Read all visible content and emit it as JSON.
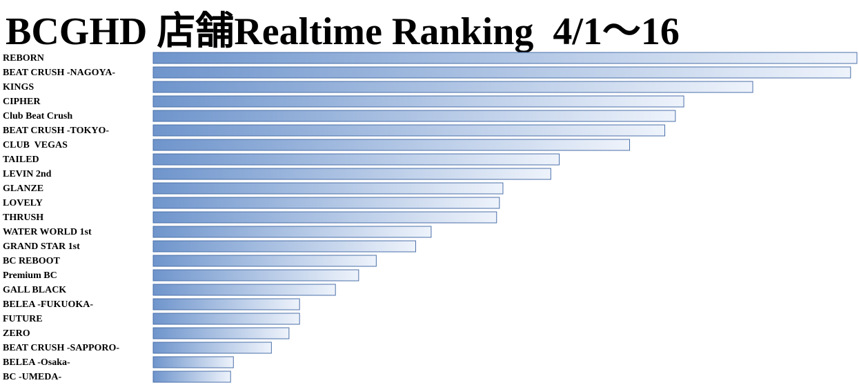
{
  "chart_data": {
    "type": "bar",
    "orientation": "horizontal",
    "title": "BCGHD 店舗Realtime Ranking  4/1～16",
    "categories": [
      "REBORN",
      "BEAT CRUSH -NAGOYA-",
      "KINGS",
      "CIPHER",
      "Club Beat Crush",
      "BEAT CRUSH -TOKYO-",
      "CLUB  VEGAS",
      "TAILED",
      "LEVIN 2nd",
      "GLANZE",
      "LOVELY",
      "THRUSH",
      "WATER WORLD 1st",
      "GRAND STAR 1st",
      "BC REBOOT",
      "Premium BC",
      "GALL BLACK",
      "BELEA -FUKUOKA-",
      "FUTURE",
      "ZERO",
      "BEAT CRUSH -SAPPORO-",
      "BELEA -Osaka-",
      "BC -UMEDA-"
    ],
    "values": [
      100,
      99.1,
      85.2,
      75.4,
      74.2,
      72.7,
      67.7,
      57.7,
      56.5,
      49.7,
      49.2,
      48.8,
      39.5,
      37.3,
      31.7,
      29.2,
      25.9,
      20.8,
      20.8,
      19.3,
      16.8,
      11.4,
      11.0
    ],
    "color": "#6f95cc"
  }
}
